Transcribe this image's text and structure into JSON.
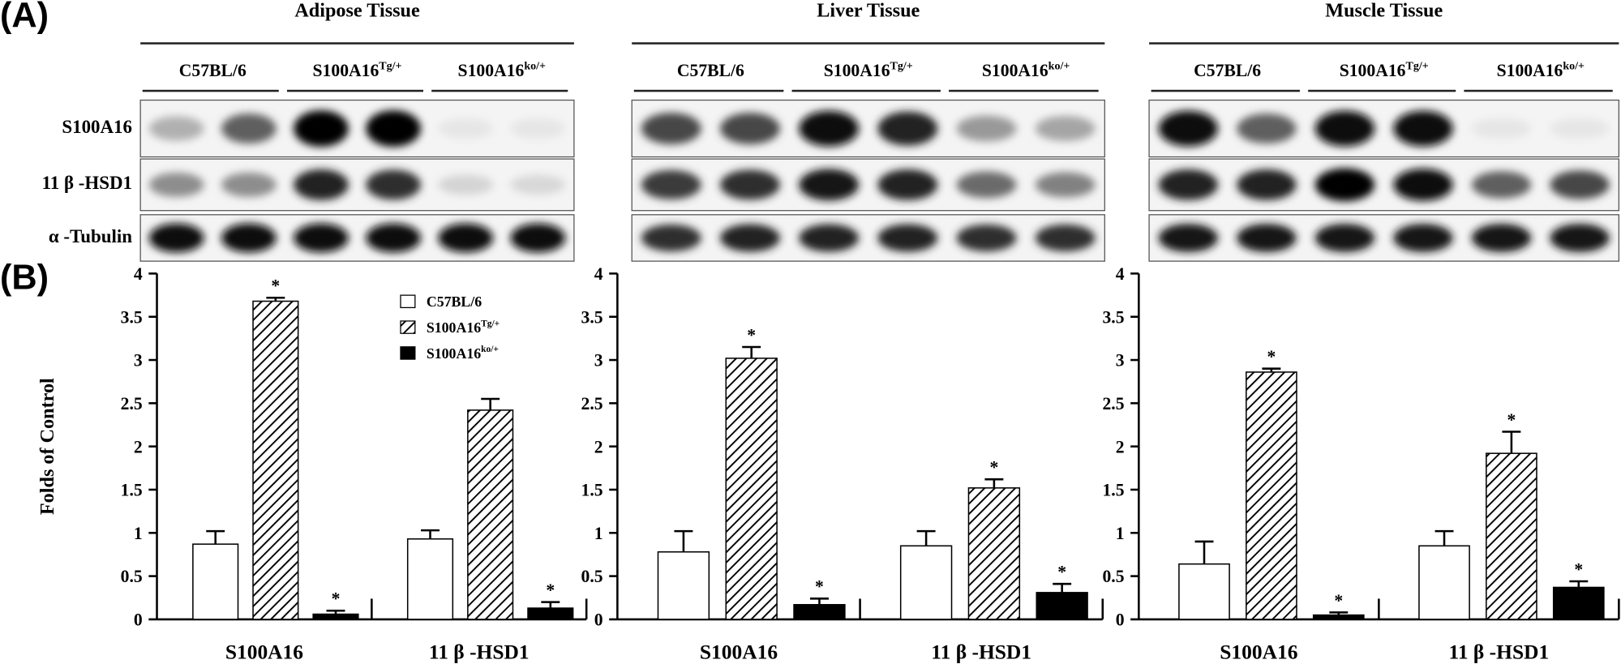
{
  "panel_labels": {
    "a": "(A)",
    "b": "(B)"
  },
  "groups": [
    {
      "base": "C57BL/6",
      "sup": ""
    },
    {
      "base": "S100A16",
      "sup": "Tg/+"
    },
    {
      "base": "S100A16",
      "sup": "ko/+"
    }
  ],
  "blot_rows": [
    "S100A16",
    "11 β -HSD1",
    "α -Tubulin"
  ],
  "tissues": [
    {
      "title": "Adipose Tissue",
      "band_intensity": [
        [
          0.25,
          0.6,
          1.0,
          1.0,
          0.02,
          0.02
        ],
        [
          0.4,
          0.4,
          0.85,
          0.8,
          0.1,
          0.08
        ],
        [
          0.95,
          0.95,
          0.95,
          0.95,
          0.95,
          0.95
        ]
      ]
    },
    {
      "title": "Liver Tissue",
      "band_intensity": [
        [
          0.7,
          0.7,
          0.95,
          0.85,
          0.35,
          0.3
        ],
        [
          0.75,
          0.8,
          0.9,
          0.85,
          0.55,
          0.45
        ],
        [
          0.8,
          0.85,
          0.85,
          0.85,
          0.8,
          0.8
        ]
      ]
    },
    {
      "title": "Muscle Tissue",
      "band_intensity": [
        [
          0.95,
          0.6,
          0.95,
          0.95,
          0.02,
          0.02
        ],
        [
          0.85,
          0.85,
          1.0,
          0.95,
          0.6,
          0.7
        ],
        [
          0.9,
          0.9,
          0.9,
          0.9,
          0.9,
          0.9
        ]
      ]
    }
  ],
  "colors": {
    "C57BL/6": "#ffffff",
    "S100A16Tg/+": "hatched",
    "S100A16ko/+": "#000000"
  },
  "chart_data": [
    {
      "type": "bar",
      "tissue": "Adipose Tissue",
      "ylabel": "Folds of Control",
      "ylim": [
        0,
        4
      ],
      "yticks": [
        "0",
        "0.5",
        "1",
        "1.5",
        "2",
        "2.5",
        "3",
        "3.5",
        "4"
      ],
      "categories": [
        "S100A16",
        "11 β -HSD1"
      ],
      "legend": {
        "placement": "top-right",
        "entries": [
          {
            "base": "C57BL/6",
            "sup": ""
          },
          {
            "base": "S100A16",
            "sup": "Tg/+"
          },
          {
            "base": "S100A16",
            "sup": "ko/+"
          }
        ]
      },
      "series": [
        {
          "name": "C57BL/6",
          "values": [
            0.87,
            0.93
          ],
          "errors": [
            0.15,
            0.1
          ],
          "significant": [
            false,
            false
          ]
        },
        {
          "name": "S100A16Tg/+",
          "values": [
            3.68,
            2.42
          ],
          "errors": [
            0.04,
            0.13
          ],
          "significant": [
            true,
            false
          ]
        },
        {
          "name": "S100A16ko/+",
          "values": [
            0.06,
            0.13
          ],
          "errors": [
            0.04,
            0.07
          ],
          "significant": [
            true,
            true
          ]
        }
      ]
    },
    {
      "type": "bar",
      "tissue": "Liver Tissue",
      "ylim": [
        0,
        4
      ],
      "yticks": [
        "0",
        "0.5",
        "1",
        "1.5",
        "2",
        "2.5",
        "3",
        "3.5",
        "4"
      ],
      "categories": [
        "S100A16",
        "11 β -HSD1"
      ],
      "series": [
        {
          "name": "C57BL/6",
          "values": [
            0.78,
            0.85
          ],
          "errors": [
            0.24,
            0.17
          ],
          "significant": [
            false,
            false
          ]
        },
        {
          "name": "S100A16Tg/+",
          "values": [
            3.02,
            1.52
          ],
          "errors": [
            0.13,
            0.1
          ],
          "significant": [
            true,
            true
          ]
        },
        {
          "name": "S100A16ko/+",
          "values": [
            0.17,
            0.31
          ],
          "errors": [
            0.07,
            0.1
          ],
          "significant": [
            true,
            true
          ]
        }
      ]
    },
    {
      "type": "bar",
      "tissue": "Muscle Tissue",
      "ylim": [
        0,
        4
      ],
      "yticks": [
        "0",
        "0.5",
        "1",
        "1.5",
        "2",
        "2.5",
        "3",
        "3.5",
        "4"
      ],
      "categories": [
        "S100A16",
        "11 β -HSD1"
      ],
      "series": [
        {
          "name": "C57BL/6",
          "values": [
            0.64,
            0.85
          ],
          "errors": [
            0.26,
            0.17
          ],
          "significant": [
            false,
            false
          ]
        },
        {
          "name": "S100A16Tg/+",
          "values": [
            2.86,
            1.92
          ],
          "errors": [
            0.04,
            0.25
          ],
          "significant": [
            true,
            true
          ]
        },
        {
          "name": "S100A16ko/+",
          "values": [
            0.05,
            0.37
          ],
          "errors": [
            0.03,
            0.07
          ],
          "significant": [
            true,
            true
          ]
        }
      ]
    }
  ]
}
